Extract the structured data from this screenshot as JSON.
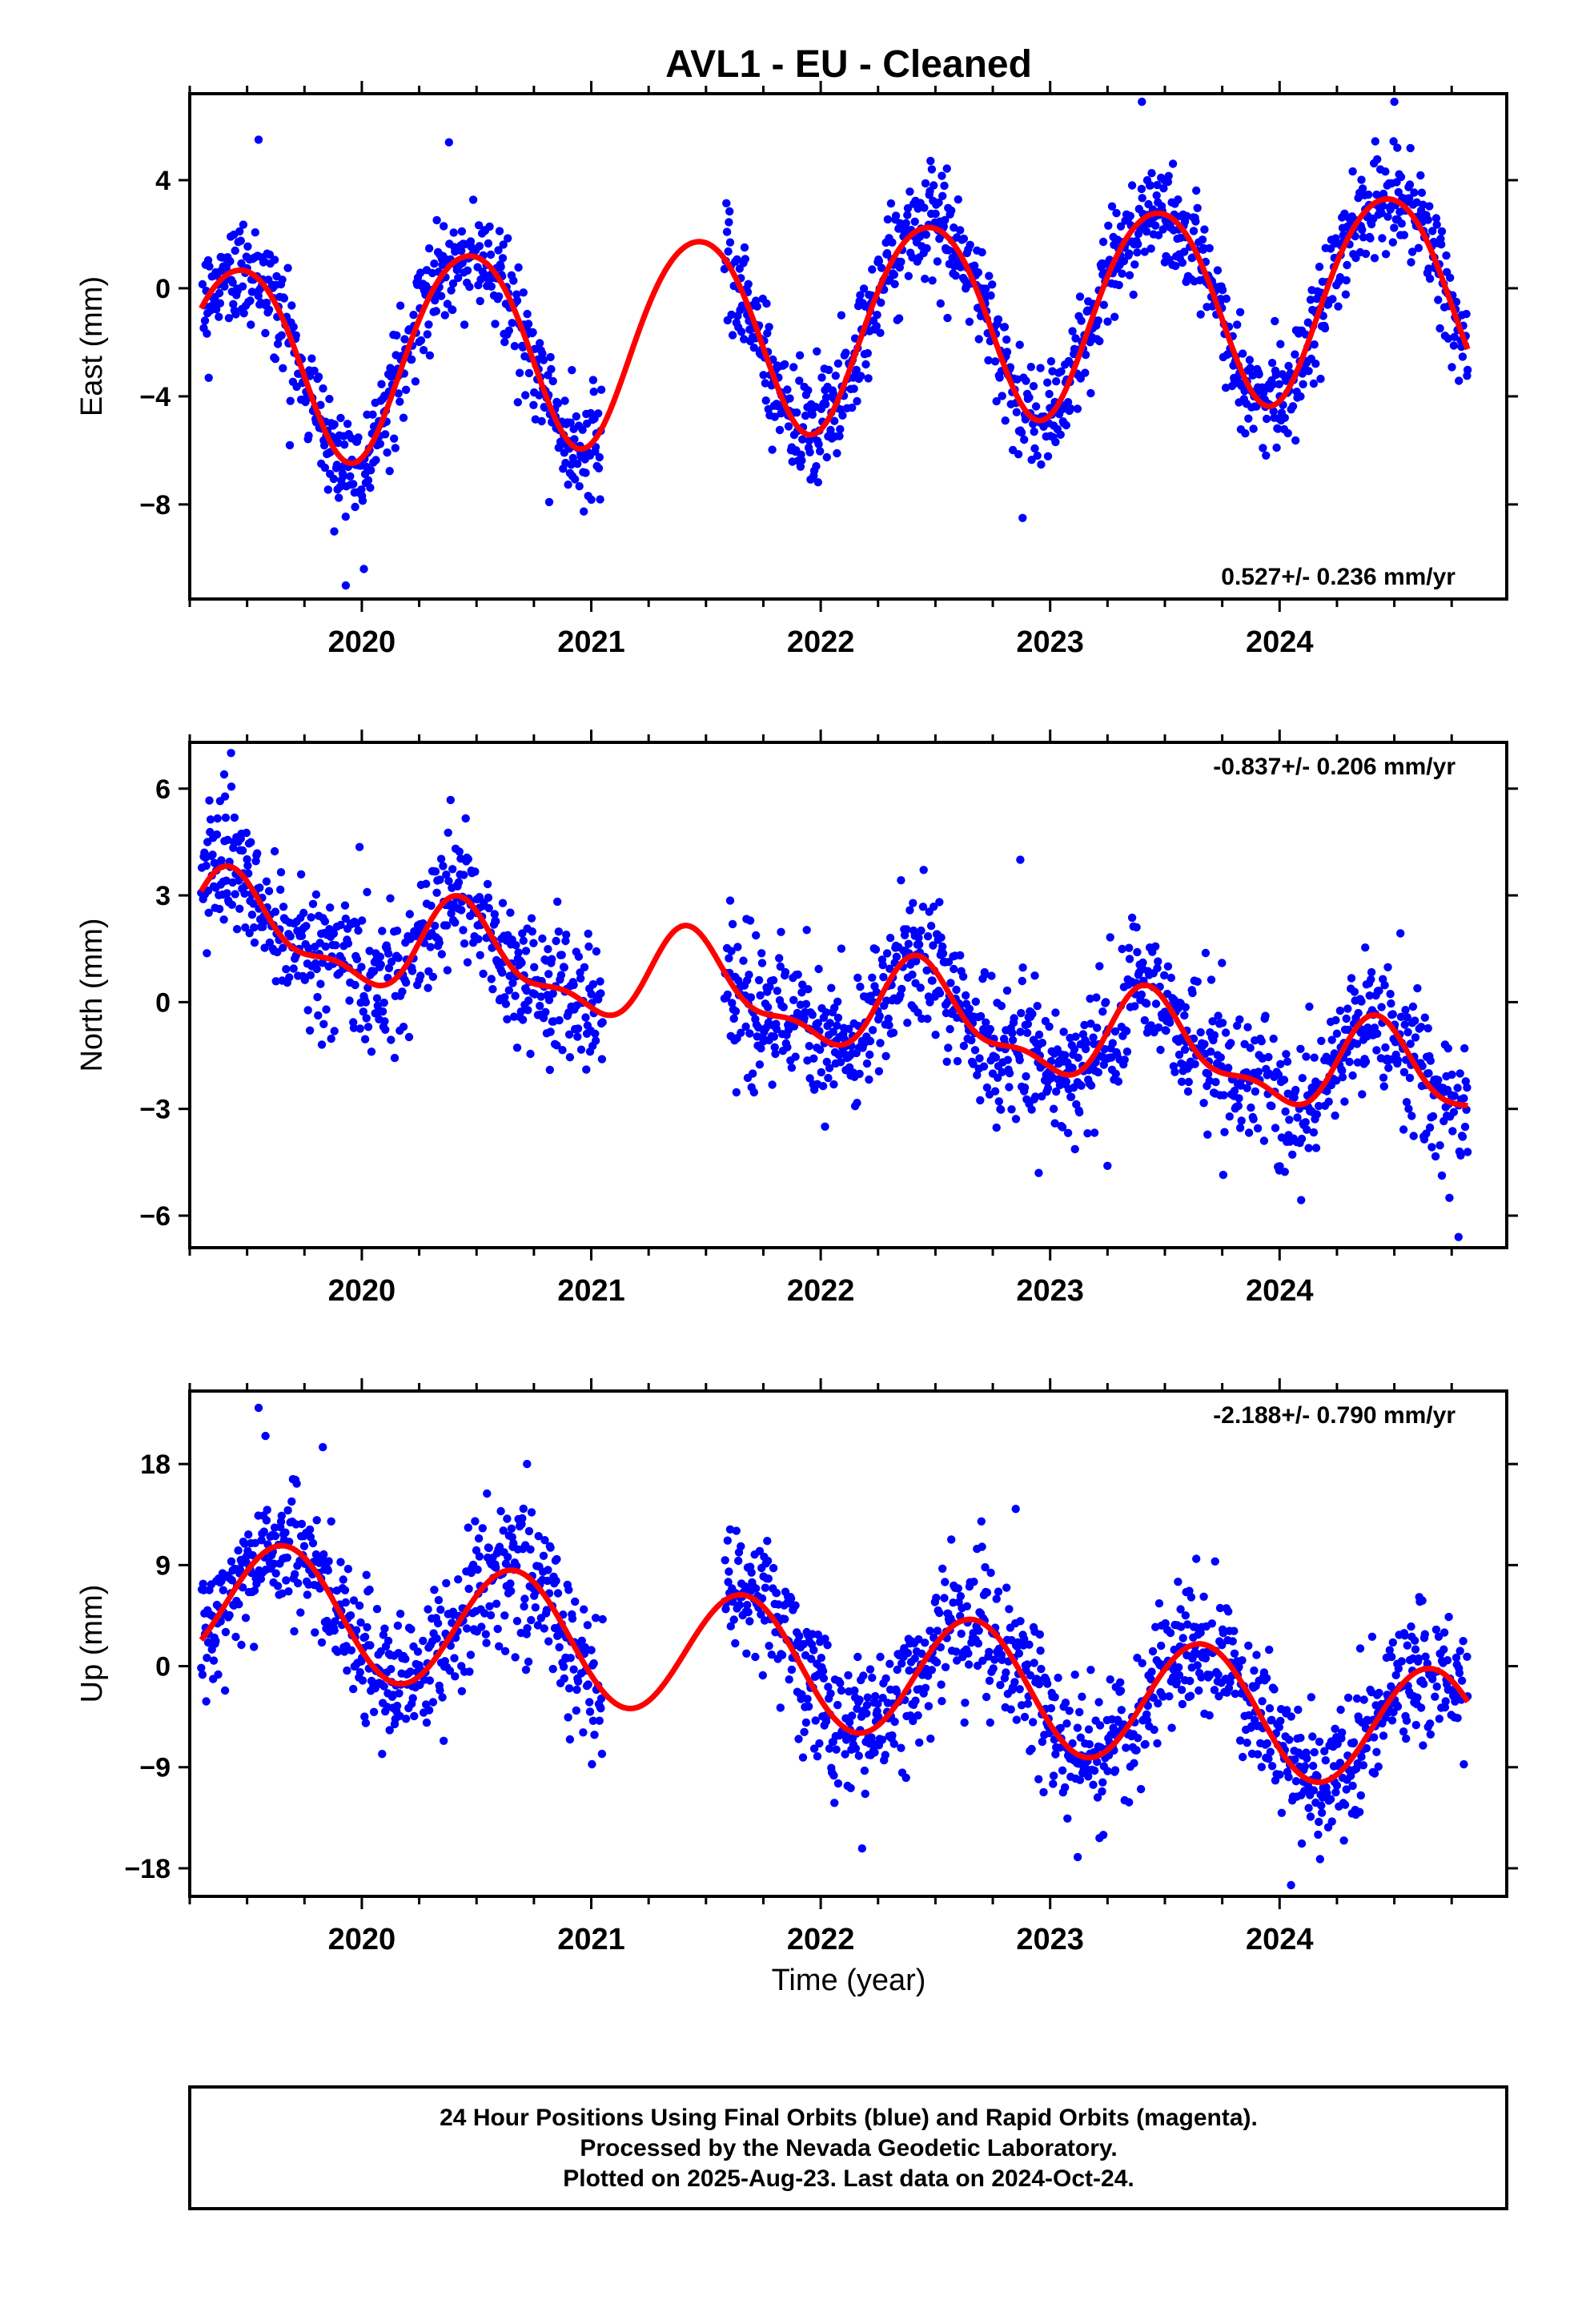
{
  "title": "AVL1  - EU - Cleaned",
  "xlabel": "Time (year)",
  "footer": {
    "line1": "24 Hour Positions Using Final Orbits (blue) and Rapid Orbits (magenta).",
    "line2": "Processed by the Nevada Geodetic Laboratory.",
    "line3": "Plotted on 2025-Aug-23. Last data on 2024-Oct-24."
  },
  "colors": {
    "points": "#0000ff",
    "model": "#ff0000",
    "frame": "#000000",
    "background": "#ffffff"
  },
  "chart_data": [
    {
      "type": "scatter",
      "name": "east",
      "ylabel": "East (mm)",
      "rate": "0.527+/- 0.236 mm/yr",
      "xlim": [
        2019.25,
        2024.99
      ],
      "ylim": [
        -11.5,
        7.2
      ],
      "yticks": [
        4,
        0,
        -4,
        -8
      ],
      "ytick_labels": [
        "4",
        "0",
        "−4",
        "−8"
      ],
      "xticks": [
        2020,
        2021,
        2022,
        2023,
        2024
      ],
      "xtick_labels": [
        "2020",
        "2021",
        "2022",
        "2023",
        "2024"
      ],
      "data_gap": [
        2021.05,
        2021.58
      ],
      "data_range": [
        2019.3,
        2024.82
      ],
      "trend": {
        "offset_mm": -1.4,
        "rate_mm_per_yr": 0.527,
        "ref_year": 2022.0
      },
      "seasonal": [
        {
          "period_yr": 1,
          "amplitude_mm": 3.7,
          "peak_year_frac": 0.46
        },
        {
          "period_yr": 0.5,
          "amplitude_mm": 0.3,
          "peak_year_frac": 0.2
        }
      ],
      "scatter_sd_mm": 1.0,
      "outliers": [
        [
          2019.55,
          5.5
        ],
        [
          2019.93,
          -11.0
        ],
        [
          2019.88,
          -9.0
        ],
        [
          2022.88,
          -8.5
        ],
        [
          2023.4,
          6.9
        ],
        [
          2024.5,
          6.9
        ],
        [
          2020.38,
          5.4
        ]
      ]
    },
    {
      "type": "scatter",
      "name": "north",
      "ylabel": "North (mm)",
      "rate": "-0.837+/- 0.206 mm/yr",
      "xlim": [
        2019.25,
        2024.99
      ],
      "ylim": [
        -6.9,
        7.3
      ],
      "yticks": [
        6,
        3,
        0,
        -3,
        -6
      ],
      "ytick_labels": [
        "6",
        "3",
        "0",
        "−3",
        "−6"
      ],
      "xticks": [
        2020,
        2021,
        2022,
        2023,
        2024
      ],
      "xtick_labels": [
        "2020",
        "2021",
        "2022",
        "2023",
        "2024"
      ],
      "data_gap": [
        2021.05,
        2021.58
      ],
      "data_range": [
        2019.3,
        2024.82
      ],
      "trend": {
        "offset_mm": 0.0,
        "rate_mm_per_yr": -0.837,
        "ref_year": 2022.0
      },
      "seasonal": [
        {
          "period_yr": 1,
          "amplitude_mm": 1.2,
          "peak_year_frac": 0.45
        },
        {
          "period_yr": 0.5,
          "amplitude_mm": 0.5,
          "peak_year_frac": 0.4
        }
      ],
      "scatter_sd_mm": 0.95,
      "outliers": [
        [
          2019.43,
          7.0
        ],
        [
          2019.4,
          6.4
        ],
        [
          2022.87,
          4.0
        ],
        [
          2024.74,
          -5.5
        ],
        [
          2024.78,
          -6.6
        ],
        [
          2023.25,
          -4.6
        ],
        [
          2022.95,
          -4.8
        ]
      ]
    },
    {
      "type": "scatter",
      "name": "up",
      "ylabel": "Up (mm)",
      "rate": "-2.188+/- 0.790 mm/yr",
      "xlim": [
        2019.25,
        2024.99
      ],
      "ylim": [
        -20.5,
        24.5
      ],
      "yticks": [
        18,
        9,
        0,
        -9,
        -18
      ],
      "ytick_labels": [
        "18",
        "9",
        "0",
        "−9",
        "−18"
      ],
      "xticks": [
        2020,
        2021,
        2022,
        2023,
        2024
      ],
      "xtick_labels": [
        "2020",
        "2021",
        "2022",
        "2023",
        "2024"
      ],
      "data_gap": [
        2021.05,
        2021.58
      ],
      "data_range": [
        2019.3,
        2024.82
      ],
      "trend": {
        "offset_mm": 0.0,
        "rate_mm_per_yr": -2.188,
        "ref_year": 2022.0
      },
      "seasonal": [
        {
          "period_yr": 1,
          "amplitude_mm": 5.6,
          "peak_year_frac": 0.66
        }
      ],
      "scatter_sd_mm": 3.0,
      "outliers": [
        [
          2019.55,
          23.0
        ],
        [
          2019.58,
          20.5
        ],
        [
          2019.83,
          19.5
        ],
        [
          2020.72,
          18.0
        ],
        [
          2024.05,
          -19.5
        ],
        [
          2023.12,
          -17.0
        ],
        [
          2022.85,
          14.0
        ]
      ]
    }
  ]
}
